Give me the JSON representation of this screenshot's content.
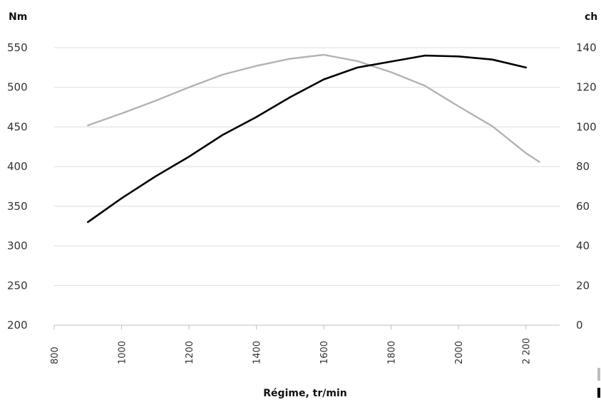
{
  "chart_data": {
    "type": "line",
    "left_axis_unit": "Nm",
    "right_axis_unit": "ch",
    "xlabel": "Régime, tr/min",
    "xlim": [
      800,
      2300
    ],
    "x_ticks": [
      "800",
      "1000",
      "1200",
      "1400",
      "1600",
      "1800",
      "2000",
      "2 200"
    ],
    "x_tick_values": [
      800,
      1000,
      1200,
      1400,
      1600,
      1800,
      2000,
      2200
    ],
    "y_left_lim": [
      200,
      550
    ],
    "y_left_ticks": [
      "200",
      "250",
      "300",
      "350",
      "400",
      "450",
      "500",
      "550"
    ],
    "y_right_lim": [
      0,
      140
    ],
    "y_right_ticks": [
      "0",
      "20",
      "40",
      "60",
      "80",
      "100",
      "120",
      "140"
    ],
    "grid": true,
    "series": [
      {
        "axis": "right",
        "color": "#000000",
        "x": [
          900,
          1000,
          1100,
          1200,
          1300,
          1400,
          1500,
          1600,
          1700,
          1800,
          1900,
          2000,
          2100,
          2200
        ],
        "values": [
          52,
          64,
          75,
          85,
          96,
          105,
          115,
          124,
          130,
          133,
          136,
          135.6,
          134,
          130
        ]
      },
      {
        "axis": "left",
        "color": "#b3b3b3",
        "x": [
          900,
          1000,
          1100,
          1200,
          1300,
          1400,
          1500,
          1600,
          1700,
          1800,
          1900,
          2000,
          2100,
          2200,
          2240
        ],
        "values": [
          452,
          467,
          483,
          500,
          516,
          527,
          536,
          541,
          533,
          519,
          502,
          476,
          451,
          417,
          406
        ]
      }
    ]
  }
}
